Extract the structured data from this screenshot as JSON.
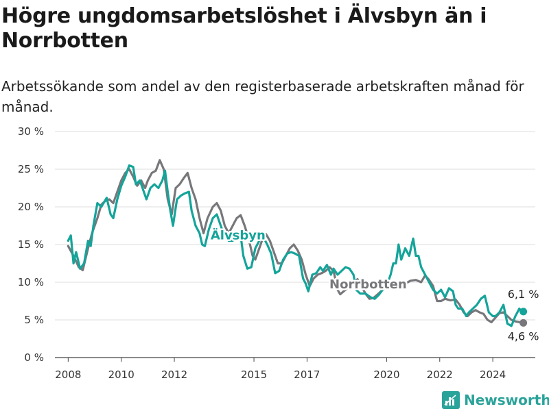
{
  "title": "Högre ungdomsarbetslöshet i Älvsbyn än i Norrbotten",
  "subtitle": "Arbetssökande som andel av den registerbaserade arbetskraften månad för månad.",
  "brand": "Newsworthy",
  "colors": {
    "alvsbyn": "#14a49a",
    "norrbotten": "#77777b",
    "grid": "#dddddd",
    "brand": "#2aa39a"
  },
  "chart_data": {
    "type": "line",
    "xlim": [
      2007.5,
      2025.6
    ],
    "ylim": [
      0,
      30
    ],
    "yticks": [
      0,
      5,
      10,
      15,
      20,
      25,
      30
    ],
    "ytick_labels": [
      "0 %",
      "5 %",
      "10 %",
      "15 %",
      "20 %",
      "25 %",
      "30 %"
    ],
    "xticks": [
      2008,
      2010,
      2012,
      2015,
      2017,
      2020,
      2022,
      2024
    ],
    "xtick_labels": [
      "2008",
      "2010",
      "2012",
      "2015",
      "2017",
      "2020",
      "2022",
      "2024"
    ],
    "grid": true,
    "series": [
      {
        "name": "Norrbotten",
        "color": "#77777b",
        "end_label": "4,6 %",
        "points": [
          [
            2008.0,
            14.8
          ],
          [
            2008.2,
            13.5
          ],
          [
            2008.4,
            12.0
          ],
          [
            2008.55,
            11.6
          ],
          [
            2008.75,
            14.5
          ],
          [
            2008.9,
            16.5
          ],
          [
            2009.1,
            18.5
          ],
          [
            2009.25,
            20.3
          ],
          [
            2009.4,
            20.8
          ],
          [
            2009.55,
            21.0
          ],
          [
            2009.7,
            20.5
          ],
          [
            2009.85,
            22.0
          ],
          [
            2010.0,
            23.5
          ],
          [
            2010.15,
            24.5
          ],
          [
            2010.3,
            25.0
          ],
          [
            2010.45,
            24.0
          ],
          [
            2010.6,
            22.8
          ],
          [
            2010.75,
            23.5
          ],
          [
            2010.9,
            22.5
          ],
          [
            2011.0,
            23.5
          ],
          [
            2011.15,
            24.5
          ],
          [
            2011.3,
            24.8
          ],
          [
            2011.45,
            26.2
          ],
          [
            2011.6,
            25.0
          ],
          [
            2011.75,
            21.0
          ],
          [
            2011.9,
            19.0
          ],
          [
            2012.05,
            22.5
          ],
          [
            2012.2,
            23.0
          ],
          [
            2012.35,
            23.8
          ],
          [
            2012.5,
            24.5
          ],
          [
            2012.65,
            22.5
          ],
          [
            2012.8,
            21.0
          ],
          [
            2012.95,
            18.5
          ],
          [
            2013.1,
            16.5
          ],
          [
            2013.25,
            18.5
          ],
          [
            2013.45,
            20.0
          ],
          [
            2013.6,
            20.5
          ],
          [
            2013.75,
            19.5
          ],
          [
            2013.9,
            17.5
          ],
          [
            2014.05,
            16.5
          ],
          [
            2014.2,
            17.5
          ],
          [
            2014.35,
            18.5
          ],
          [
            2014.5,
            18.9
          ],
          [
            2014.65,
            17.5
          ],
          [
            2014.8,
            15.8
          ],
          [
            2014.95,
            13.5
          ],
          [
            2015.05,
            13.0
          ],
          [
            2015.15,
            14.0
          ],
          [
            2015.3,
            15.5
          ],
          [
            2015.45,
            16.4
          ],
          [
            2015.6,
            15.5
          ],
          [
            2015.75,
            14.0
          ],
          [
            2015.9,
            12.5
          ],
          [
            2016.05,
            12.5
          ],
          [
            2016.2,
            13.5
          ],
          [
            2016.35,
            14.5
          ],
          [
            2016.5,
            15.0
          ],
          [
            2016.65,
            14.2
          ],
          [
            2016.8,
            13.0
          ],
          [
            2016.95,
            11.0
          ],
          [
            2017.1,
            9.5
          ],
          [
            2017.25,
            10.5
          ],
          [
            2017.4,
            11.0
          ],
          [
            2017.55,
            11.2
          ],
          [
            2017.7,
            11.5
          ],
          [
            2017.85,
            12.0
          ],
          [
            2018.0,
            11.5
          ],
          [
            2018.15,
            9.0
          ],
          [
            2018.25,
            8.4
          ],
          [
            2018.45,
            9.0
          ],
          [
            2018.6,
            9.5
          ],
          [
            2018.75,
            10.0
          ],
          [
            2018.9,
            10.4
          ],
          [
            2019.05,
            9.5
          ],
          [
            2019.2,
            8.5
          ],
          [
            2019.35,
            7.8
          ],
          [
            2019.5,
            7.9
          ],
          [
            2019.7,
            8.5
          ],
          [
            2019.9,
            9.2
          ],
          [
            2020.1,
            9.5
          ],
          [
            2020.3,
            9.6
          ],
          [
            2020.5,
            9.5
          ],
          [
            2020.7,
            9.8
          ],
          [
            2020.9,
            10.2
          ],
          [
            2021.1,
            10.3
          ],
          [
            2021.3,
            10.0
          ],
          [
            2021.45,
            10.9
          ],
          [
            2021.6,
            10.3
          ],
          [
            2021.75,
            9.5
          ],
          [
            2021.9,
            7.5
          ],
          [
            2022.05,
            7.5
          ],
          [
            2022.2,
            7.8
          ],
          [
            2022.4,
            7.6
          ],
          [
            2022.6,
            7.7
          ],
          [
            2022.75,
            7.0
          ],
          [
            2022.9,
            6.0
          ],
          [
            2023.05,
            5.5
          ],
          [
            2023.2,
            6.0
          ],
          [
            2023.35,
            6.3
          ],
          [
            2023.5,
            6.0
          ],
          [
            2023.65,
            5.8
          ],
          [
            2023.8,
            5.0
          ],
          [
            2023.95,
            4.7
          ],
          [
            2024.1,
            5.3
          ],
          [
            2024.25,
            5.9
          ],
          [
            2024.4,
            6.0
          ],
          [
            2024.55,
            5.5
          ],
          [
            2024.7,
            5.0
          ],
          [
            2024.85,
            4.8
          ],
          [
            2025.0,
            4.7
          ],
          [
            2025.15,
            4.6
          ]
        ]
      },
      {
        "name": "Älvsbyn",
        "color": "#14a49a",
        "end_label": "6,1 %",
        "points": [
          [
            2008.0,
            15.5
          ],
          [
            2008.1,
            16.2
          ],
          [
            2008.2,
            12.5
          ],
          [
            2008.3,
            14.0
          ],
          [
            2008.45,
            11.8
          ],
          [
            2008.6,
            12.5
          ],
          [
            2008.75,
            15.5
          ],
          [
            2008.85,
            14.8
          ],
          [
            2008.95,
            17.5
          ],
          [
            2009.1,
            20.5
          ],
          [
            2009.25,
            20.0
          ],
          [
            2009.45,
            21.2
          ],
          [
            2009.6,
            19.0
          ],
          [
            2009.7,
            18.5
          ],
          [
            2009.85,
            21.0
          ],
          [
            2010.0,
            22.8
          ],
          [
            2010.15,
            24.0
          ],
          [
            2010.3,
            25.5
          ],
          [
            2010.45,
            25.3
          ],
          [
            2010.55,
            23.0
          ],
          [
            2010.7,
            23.5
          ],
          [
            2010.85,
            22.0
          ],
          [
            2010.95,
            21.0
          ],
          [
            2011.1,
            22.5
          ],
          [
            2011.25,
            23.0
          ],
          [
            2011.4,
            22.5
          ],
          [
            2011.55,
            23.5
          ],
          [
            2011.65,
            24.8
          ],
          [
            2011.75,
            22.0
          ],
          [
            2011.85,
            19.5
          ],
          [
            2011.95,
            17.5
          ],
          [
            2012.1,
            21.0
          ],
          [
            2012.25,
            21.5
          ],
          [
            2012.4,
            21.8
          ],
          [
            2012.55,
            22.0
          ],
          [
            2012.65,
            19.5
          ],
          [
            2012.8,
            17.5
          ],
          [
            2012.95,
            16.5
          ],
          [
            2013.05,
            15.0
          ],
          [
            2013.15,
            14.8
          ],
          [
            2013.3,
            17.0
          ],
          [
            2013.45,
            18.5
          ],
          [
            2013.6,
            19.0
          ],
          [
            2013.75,
            17.5
          ],
          [
            2013.9,
            16.0
          ],
          [
            2014.05,
            15.5
          ],
          [
            2014.2,
            15.5
          ],
          [
            2014.35,
            16.0
          ],
          [
            2014.5,
            16.2
          ],
          [
            2014.6,
            13.5
          ],
          [
            2014.75,
            11.8
          ],
          [
            2014.9,
            12.0
          ],
          [
            2015.05,
            14.5
          ],
          [
            2015.2,
            15.5
          ],
          [
            2015.35,
            16.0
          ],
          [
            2015.5,
            15.0
          ],
          [
            2015.65,
            13.8
          ],
          [
            2015.8,
            11.2
          ],
          [
            2015.95,
            11.5
          ],
          [
            2016.1,
            13.0
          ],
          [
            2016.25,
            13.8
          ],
          [
            2016.4,
            14.0
          ],
          [
            2016.55,
            13.8
          ],
          [
            2016.7,
            13.5
          ],
          [
            2016.85,
            10.5
          ],
          [
            2016.95,
            9.8
          ],
          [
            2017.05,
            8.8
          ],
          [
            2017.2,
            11.0
          ],
          [
            2017.35,
            11.2
          ],
          [
            2017.5,
            12.0
          ],
          [
            2017.6,
            11.5
          ],
          [
            2017.75,
            12.3
          ],
          [
            2017.9,
            11.0
          ],
          [
            2018.0,
            11.8
          ],
          [
            2018.15,
            11.0
          ],
          [
            2018.3,
            11.5
          ],
          [
            2018.45,
            12.0
          ],
          [
            2018.6,
            11.8
          ],
          [
            2018.75,
            11.0
          ],
          [
            2018.85,
            9.0
          ],
          [
            2019.0,
            8.5
          ],
          [
            2019.2,
            8.5
          ],
          [
            2019.4,
            8.0
          ],
          [
            2019.55,
            7.8
          ],
          [
            2019.7,
            8.3
          ],
          [
            2019.85,
            9.0
          ],
          [
            2020.0,
            9.5
          ],
          [
            2020.15,
            11.0
          ],
          [
            2020.25,
            12.5
          ],
          [
            2020.35,
            12.5
          ],
          [
            2020.45,
            15.0
          ],
          [
            2020.55,
            13.0
          ],
          [
            2020.7,
            14.5
          ],
          [
            2020.85,
            13.5
          ],
          [
            2021.0,
            15.8
          ],
          [
            2021.1,
            13.5
          ],
          [
            2021.2,
            13.5
          ],
          [
            2021.3,
            12.0
          ],
          [
            2021.45,
            11.0
          ],
          [
            2021.6,
            10.0
          ],
          [
            2021.75,
            9.0
          ],
          [
            2021.9,
            8.5
          ],
          [
            2022.05,
            9.0
          ],
          [
            2022.2,
            8.0
          ],
          [
            2022.35,
            9.2
          ],
          [
            2022.5,
            8.8
          ],
          [
            2022.6,
            7.0
          ],
          [
            2022.7,
            6.5
          ],
          [
            2022.85,
            6.5
          ],
          [
            2023.0,
            5.5
          ],
          [
            2023.1,
            6.0
          ],
          [
            2023.25,
            6.5
          ],
          [
            2023.4,
            7.0
          ],
          [
            2023.55,
            7.8
          ],
          [
            2023.7,
            8.2
          ],
          [
            2023.85,
            6.0
          ],
          [
            2024.0,
            5.5
          ],
          [
            2024.1,
            5.5
          ],
          [
            2024.25,
            6.0
          ],
          [
            2024.4,
            7.0
          ],
          [
            2024.55,
            4.5
          ],
          [
            2024.7,
            4.2
          ],
          [
            2024.85,
            5.5
          ],
          [
            2025.0,
            6.5
          ],
          [
            2025.1,
            6.0
          ],
          [
            2025.15,
            6.1
          ]
        ]
      }
    ]
  }
}
